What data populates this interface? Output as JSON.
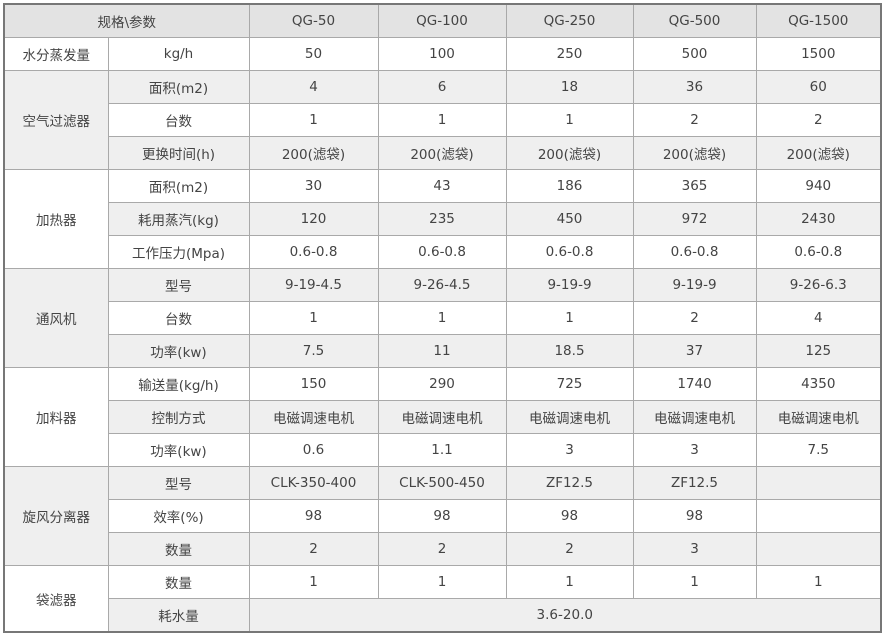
{
  "header": {
    "corner": "规格\\参数",
    "models": [
      "QG-50",
      "QG-100",
      "QG-250",
      "QG-500",
      "QG-1500"
    ]
  },
  "groups": [
    {
      "name": "水分蒸发量",
      "rows": [
        {
          "param": "kg/h",
          "values": [
            "50",
            "100",
            "250",
            "500",
            "1500"
          ]
        }
      ]
    },
    {
      "name": "空气过滤器",
      "rows": [
        {
          "param": "面积(m2)",
          "values": [
            "4",
            "6",
            "18",
            "36",
            "60"
          ]
        },
        {
          "param": "台数",
          "values": [
            "1",
            "1",
            "1",
            "2",
            "2"
          ]
        },
        {
          "param": "更换时间(h)",
          "values": [
            "200(滤袋)",
            "200(滤袋)",
            "200(滤袋)",
            "200(滤袋)",
            "200(滤袋)"
          ]
        }
      ]
    },
    {
      "name": "加热器",
      "rows": [
        {
          "param": "面积(m2)",
          "values": [
            "30",
            "43",
            "186",
            "365",
            "940"
          ]
        },
        {
          "param": "耗用蒸汽(kg)",
          "values": [
            "120",
            "235",
            "450",
            "972",
            "2430"
          ]
        },
        {
          "param": "工作压力(Mpa)",
          "values": [
            "0.6-0.8",
            "0.6-0.8",
            "0.6-0.8",
            "0.6-0.8",
            "0.6-0.8"
          ]
        }
      ]
    },
    {
      "name": "通风机",
      "rows": [
        {
          "param": "型号",
          "values": [
            "9-19-4.5",
            "9-26-4.5",
            "9-19-9",
            "9-19-9",
            "9-26-6.3"
          ]
        },
        {
          "param": "台数",
          "values": [
            "1",
            "1",
            "1",
            "2",
            "4"
          ]
        },
        {
          "param": "功率(kw)",
          "values": [
            "7.5",
            "11",
            "18.5",
            "37",
            "125"
          ]
        }
      ]
    },
    {
      "name": "加料器",
      "rows": [
        {
          "param": "输送量(kg/h)",
          "values": [
            "150",
            "290",
            "725",
            "1740",
            "4350"
          ]
        },
        {
          "param": "控制方式",
          "values": [
            "电磁调速电机",
            "电磁调速电机",
            "电磁调速电机",
            "电磁调速电机",
            "电磁调速电机"
          ]
        },
        {
          "param": "功率(kw)",
          "values": [
            "0.6",
            "1.1",
            "3",
            "3",
            "7.5"
          ]
        }
      ]
    },
    {
      "name": "旋风分离器",
      "rows": [
        {
          "param": "型号",
          "values": [
            "CLK-350-400",
            "CLK-500-450",
            "ZF12.5",
            "ZF12.5",
            ""
          ]
        },
        {
          "param": "效率(%)",
          "values": [
            "98",
            "98",
            "98",
            "98",
            ""
          ]
        },
        {
          "param": "数量",
          "values": [
            "2",
            "2",
            "2",
            "3",
            ""
          ]
        }
      ]
    },
    {
      "name": "袋滤器",
      "rows": [
        {
          "param": "数量",
          "values": [
            "1",
            "1",
            "1",
            "1",
            "1"
          ]
        },
        {
          "param": "耗水量",
          "merged": "3.6-20.0"
        }
      ]
    }
  ]
}
